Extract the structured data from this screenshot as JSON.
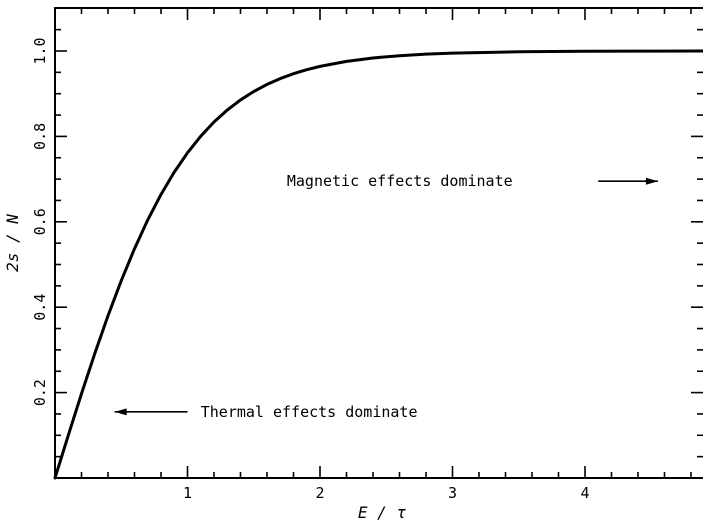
{
  "chart_data": {
    "type": "line",
    "title": "",
    "xlabel": "E / τ",
    "ylabel": "2s / N",
    "xlim": [
      0,
      5
    ],
    "ylim": [
      0,
      1.1
    ],
    "x_ticks": [
      {
        "value": 1,
        "label": "1"
      },
      {
        "value": 2,
        "label": "2"
      },
      {
        "value": 3,
        "label": "3"
      },
      {
        "value": 4,
        "label": "4"
      }
    ],
    "y_ticks": [
      {
        "value": 0.2,
        "label": "0.2"
      },
      {
        "value": 0.4,
        "label": "0.4"
      },
      {
        "value": 0.6,
        "label": "0.6"
      },
      {
        "value": 0.8,
        "label": "0.8"
      },
      {
        "value": 1.0,
        "label": "1.0"
      }
    ],
    "x_minor_step": 0.2,
    "y_minor_step": 0.05,
    "grid": false,
    "legend": "none",
    "series": [
      {
        "x": [
          0,
          0.1,
          0.2,
          0.3,
          0.4,
          0.5,
          0.6,
          0.7,
          0.8,
          0.9,
          1.0,
          1.1,
          1.2,
          1.3,
          1.4,
          1.5,
          1.6,
          1.7,
          1.8,
          1.9,
          2.0,
          2.2,
          2.4,
          2.6,
          2.8,
          3.0,
          3.5,
          4.0,
          4.5,
          5.0
        ],
        "y": [
          0,
          0.0997,
          0.1974,
          0.2913,
          0.3799,
          0.4621,
          0.537,
          0.6044,
          0.664,
          0.7163,
          0.7616,
          0.8005,
          0.8337,
          0.8617,
          0.8854,
          0.9051,
          0.9217,
          0.9354,
          0.9468,
          0.9562,
          0.964,
          0.9757,
          0.9837,
          0.989,
          0.9926,
          0.9951,
          0.9982,
          0.9993,
          0.9998,
          0.9999
        ]
      }
    ],
    "annotations": [
      {
        "text": "Magnetic effects dominate",
        "x": 1.75,
        "y": 0.695,
        "arrow": "right",
        "arrow_from": 4.1,
        "arrow_to": 4.55
      },
      {
        "text": "Thermal effects dominate",
        "x": 1.1,
        "y": 0.155,
        "arrow": "left",
        "arrow_from": 1.0,
        "arrow_to": 0.45
      }
    ],
    "colors": {
      "line": "#000000",
      "axes": "#000000",
      "background": "#ffffff"
    }
  }
}
